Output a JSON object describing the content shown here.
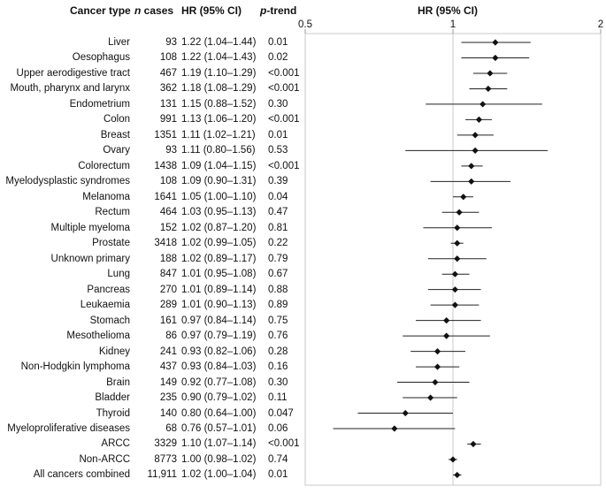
{
  "headers": {
    "cancer_type": "Cancer type",
    "n_italic": "n",
    "n_rest": " cases",
    "hr": "HR (95% CI)",
    "p_italic": "p",
    "p_rest": "-trend",
    "plot_title": "HR (95% CI)"
  },
  "chart_data": {
    "type": "forest",
    "title": "HR (95% CI)",
    "x_scale": "log",
    "xlim": [
      0.5,
      2
    ],
    "xticks": [
      0.5,
      1,
      2
    ],
    "xtick_labels": [
      "0.5",
      "1",
      "2"
    ],
    "reference_line": 1,
    "rows": [
      {
        "name": "Liver",
        "n": "93",
        "hr_text": "1.22 (1.04–1.44)",
        "p": "0.01",
        "hr": 1.22,
        "lo": 1.04,
        "hi": 1.44
      },
      {
        "name": "Oesophagus",
        "n": "108",
        "hr_text": "1.22 (1.04–1.43)",
        "p": "0.02",
        "hr": 1.22,
        "lo": 1.04,
        "hi": 1.43
      },
      {
        "name": "Upper aerodigestive tract",
        "n": "467",
        "hr_text": "1.19 (1.10–1.29)",
        "p": "<0.001",
        "hr": 1.19,
        "lo": 1.1,
        "hi": 1.29
      },
      {
        "name": "Mouth, pharynx and larynx",
        "n": "362",
        "hr_text": "1.18 (1.08–1.29)",
        "p": "<0.001",
        "hr": 1.18,
        "lo": 1.08,
        "hi": 1.29
      },
      {
        "name": "Endometrium",
        "n": "131",
        "hr_text": "1.15 (0.88–1.52)",
        "p": "0.30",
        "hr": 1.15,
        "lo": 0.88,
        "hi": 1.52
      },
      {
        "name": "Colon",
        "n": "991",
        "hr_text": "1.13 (1.06–1.20)",
        "p": "<0.001",
        "hr": 1.13,
        "lo": 1.06,
        "hi": 1.2
      },
      {
        "name": "Breast",
        "n": "1351",
        "hr_text": "1.11 (1.02–1.21)",
        "p": "0.01",
        "hr": 1.11,
        "lo": 1.02,
        "hi": 1.21
      },
      {
        "name": "Ovary",
        "n": "93",
        "hr_text": "1.11 (0.80–1.56)",
        "p": "0.53",
        "hr": 1.11,
        "lo": 0.8,
        "hi": 1.56
      },
      {
        "name": "Colorectum",
        "n": "1438",
        "hr_text": "1.09 (1.04–1.15)",
        "p": "<0.001",
        "hr": 1.09,
        "lo": 1.04,
        "hi": 1.15
      },
      {
        "name": "Myelodysplastic syndromes",
        "n": "108",
        "hr_text": "1.09 (0.90–1.31)",
        "p": "0.39",
        "hr": 1.09,
        "lo": 0.9,
        "hi": 1.31
      },
      {
        "name": "Melanoma",
        "n": "1641",
        "hr_text": "1.05 (1.00–1.10)",
        "p": "0.04",
        "hr": 1.05,
        "lo": 1.0,
        "hi": 1.1
      },
      {
        "name": "Rectum",
        "n": "464",
        "hr_text": "1.03 (0.95–1.13)",
        "p": "0.47",
        "hr": 1.03,
        "lo": 0.95,
        "hi": 1.13
      },
      {
        "name": "Multiple myeloma",
        "n": "152",
        "hr_text": "1.02 (0.87–1.20)",
        "p": "0.81",
        "hr": 1.02,
        "lo": 0.87,
        "hi": 1.2
      },
      {
        "name": "Prostate",
        "n": "3418",
        "hr_text": "1.02 (0.99–1.05)",
        "p": "0.22",
        "hr": 1.02,
        "lo": 0.99,
        "hi": 1.05
      },
      {
        "name": "Unknown primary",
        "n": "188",
        "hr_text": "1.02 (0.89–1.17)",
        "p": "0.79",
        "hr": 1.02,
        "lo": 0.89,
        "hi": 1.17
      },
      {
        "name": "Lung",
        "n": "847",
        "hr_text": "1.01 (0.95–1.08)",
        "p": "0.67",
        "hr": 1.01,
        "lo": 0.95,
        "hi": 1.08
      },
      {
        "name": "Pancreas",
        "n": "270",
        "hr_text": "1.01 (0.89–1.14)",
        "p": "0.88",
        "hr": 1.01,
        "lo": 0.89,
        "hi": 1.14
      },
      {
        "name": "Leukaemia",
        "n": "289",
        "hr_text": "1.01 (0.90–1.13)",
        "p": "0.89",
        "hr": 1.01,
        "lo": 0.9,
        "hi": 1.13
      },
      {
        "name": "Stomach",
        "n": "161",
        "hr_text": "0.97 (0.84–1.14)",
        "p": "0.75",
        "hr": 0.97,
        "lo": 0.84,
        "hi": 1.14
      },
      {
        "name": "Mesothelioma",
        "n": "86",
        "hr_text": "0.97 (0.79–1.19)",
        "p": "0.76",
        "hr": 0.97,
        "lo": 0.79,
        "hi": 1.19
      },
      {
        "name": "Kidney",
        "n": "241",
        "hr_text": "0.93 (0.82–1.06)",
        "p": "0.28",
        "hr": 0.93,
        "lo": 0.82,
        "hi": 1.06
      },
      {
        "name": "Non-Hodgkin lymphoma",
        "n": "437",
        "hr_text": "0.93 (0.84–1.03)",
        "p": "0.16",
        "hr": 0.93,
        "lo": 0.84,
        "hi": 1.03
      },
      {
        "name": "Brain",
        "n": "149",
        "hr_text": "0.92 (0.77–1.08)",
        "p": "0.30",
        "hr": 0.92,
        "lo": 0.77,
        "hi": 1.08
      },
      {
        "name": "Bladder",
        "n": "235",
        "hr_text": "0.90 (0.79–1.02)",
        "p": "0.11",
        "hr": 0.9,
        "lo": 0.79,
        "hi": 1.02
      },
      {
        "name": "Thyroid",
        "n": "140",
        "hr_text": "0.80 (0.64–1.00)",
        "p": "0.047",
        "hr": 0.8,
        "lo": 0.64,
        "hi": 1.0
      },
      {
        "name": "Myeloproliferative diseases",
        "n": "68",
        "hr_text": "0.76 (0.57–1.01)",
        "p": "0.06",
        "hr": 0.76,
        "lo": 0.57,
        "hi": 1.01
      },
      {
        "name": "ARCC",
        "n": "3329",
        "hr_text": "1.10 (1.07–1.14)",
        "p": "<0.001",
        "hr": 1.1,
        "lo": 1.07,
        "hi": 1.14
      },
      {
        "name": "Non-ARCC",
        "n": "8773",
        "hr_text": "1.00 (0.98–1.02)",
        "p": "0.74",
        "hr": 1.0,
        "lo": 0.98,
        "hi": 1.02
      },
      {
        "name": "All cancers combined",
        "n": "11,911",
        "hr_text": "1.02 (1.00–1.04)",
        "p": "0.01",
        "hr": 1.02,
        "lo": 1.0,
        "hi": 1.04
      }
    ]
  }
}
